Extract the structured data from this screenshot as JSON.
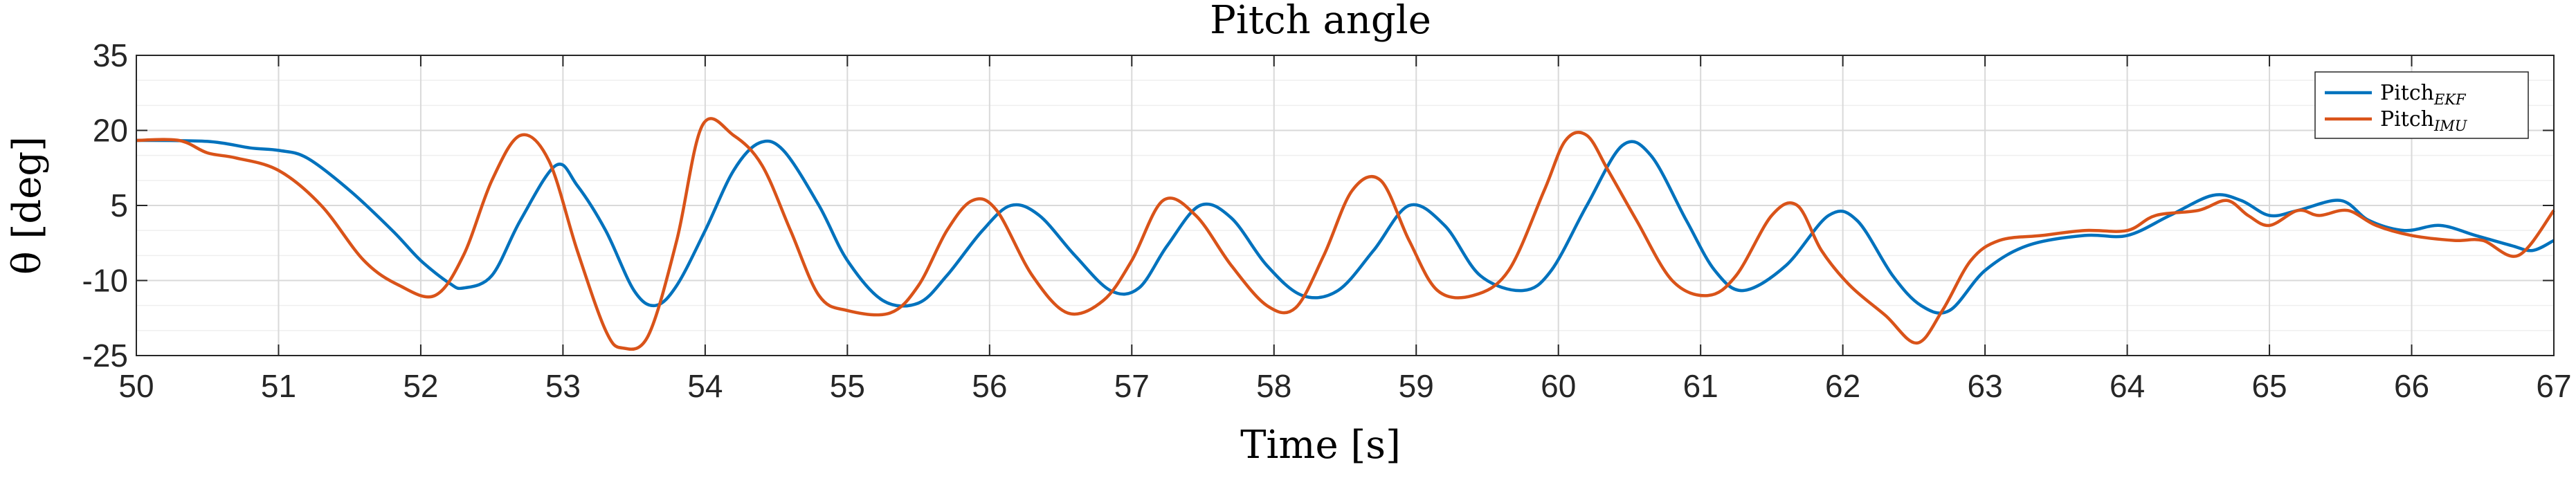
{
  "chart_data": {
    "type": "line",
    "title": "Pitch angle",
    "xlabel": "Time [s]",
    "ylabel": "θ [deg]",
    "xlim": [
      50,
      67
    ],
    "ylim": [
      -25,
      35
    ],
    "xticks": [
      50,
      51,
      52,
      53,
      54,
      55,
      56,
      57,
      58,
      59,
      60,
      61,
      62,
      63,
      64,
      65,
      66,
      67
    ],
    "yticks": [
      -25,
      -10,
      5,
      20,
      35
    ],
    "grid": true,
    "legend_position": "top-right",
    "series": [
      {
        "name": "Pitch",
        "name_subscript": "EKF",
        "color": "#0072BD",
        "x": [
          50,
          50.5,
          50.8,
          51.0,
          51.2,
          51.5,
          51.8,
          52.0,
          52.2,
          52.3,
          52.5,
          52.7,
          52.95,
          53.1,
          53.3,
          53.5,
          53.65,
          53.8,
          54.0,
          54.2,
          54.38,
          54.55,
          54.8,
          55.0,
          55.25,
          55.5,
          55.7,
          55.95,
          56.15,
          56.35,
          56.6,
          56.85,
          57.05,
          57.25,
          57.48,
          57.7,
          57.95,
          58.2,
          58.45,
          58.7,
          58.95,
          59.2,
          59.45,
          59.75,
          59.95,
          60.2,
          60.45,
          60.65,
          60.9,
          61.1,
          61.3,
          61.6,
          61.9,
          62.1,
          62.35,
          62.55,
          62.75,
          63.0,
          63.3,
          63.7,
          64.0,
          64.3,
          64.6,
          64.8,
          65.0,
          65.2,
          65.5,
          65.7,
          65.95,
          66.2,
          66.45,
          66.7,
          66.85,
          67.0
        ],
        "y": [
          18,
          17.8,
          16.5,
          16,
          14.5,
          8,
          0,
          -6,
          -10.5,
          -11.5,
          -9,
          2,
          13,
          9,
          0,
          -12,
          -15,
          -11,
          0,
          12,
          17.5,
          16,
          5,
          -6,
          -14,
          -14.5,
          -9,
          0,
          5,
          3,
          -5,
          -12,
          -11.5,
          -3,
          5,
          2.5,
          -7,
          -13,
          -12,
          -4,
          5,
          1,
          -9,
          -12,
          -8,
          5,
          17,
          15,
          2,
          -8,
          -12,
          -7,
          3,
          2,
          -9,
          -15,
          -16,
          -8,
          -3,
          -1,
          -1,
          3,
          7,
          6,
          3,
          4,
          6,
          2,
          0,
          1,
          -1,
          -3,
          -4,
          -2
        ]
      },
      {
        "name": "Pitch",
        "name_subscript": "IMU",
        "color": "#D95319",
        "x": [
          50,
          50.3,
          50.5,
          50.7,
          51.0,
          51.3,
          51.6,
          51.85,
          52.1,
          52.3,
          52.5,
          52.7,
          52.9,
          53.1,
          53.3,
          53.42,
          53.6,
          53.8,
          53.98,
          54.2,
          54.4,
          54.6,
          54.8,
          55.0,
          55.3,
          55.5,
          55.7,
          55.88,
          56.05,
          56.3,
          56.55,
          56.8,
          57.0,
          57.22,
          57.45,
          57.7,
          57.95,
          58.15,
          58.35,
          58.55,
          58.75,
          58.95,
          59.15,
          59.4,
          59.65,
          59.9,
          60.05,
          60.2,
          60.35,
          60.55,
          60.8,
          61.05,
          61.25,
          61.5,
          61.68,
          61.85,
          62.05,
          62.3,
          62.52,
          62.7,
          62.9,
          63.1,
          63.4,
          63.7,
          64.0,
          64.2,
          64.5,
          64.7,
          64.85,
          65.0,
          65.2,
          65.35,
          65.55,
          65.75,
          66.0,
          66.3,
          66.5,
          66.75,
          67.0
        ],
        "y": [
          18,
          18,
          15.5,
          14.5,
          12,
          5,
          -6,
          -11,
          -13,
          -5,
          10,
          19,
          14,
          -4,
          -20,
          -23.5,
          -21,
          -2,
          21,
          19,
          13,
          0,
          -13,
          -16,
          -16.5,
          -11,
          0,
          6,
          4,
          -9,
          -16.5,
          -14,
          -6,
          6,
          3,
          -7,
          -15,
          -15.5,
          -5,
          8,
          10,
          -2,
          -12,
          -13,
          -8,
          8,
          18,
          19,
          12,
          2,
          -10,
          -13,
          -9,
          3,
          5,
          -4,
          -11,
          -17,
          -22.5,
          -16,
          -6,
          -2,
          -1,
          0,
          0,
          3,
          4,
          6,
          3,
          1,
          4,
          3,
          4,
          1,
          -1,
          -2,
          -2,
          -5,
          4
        ]
      }
    ]
  }
}
